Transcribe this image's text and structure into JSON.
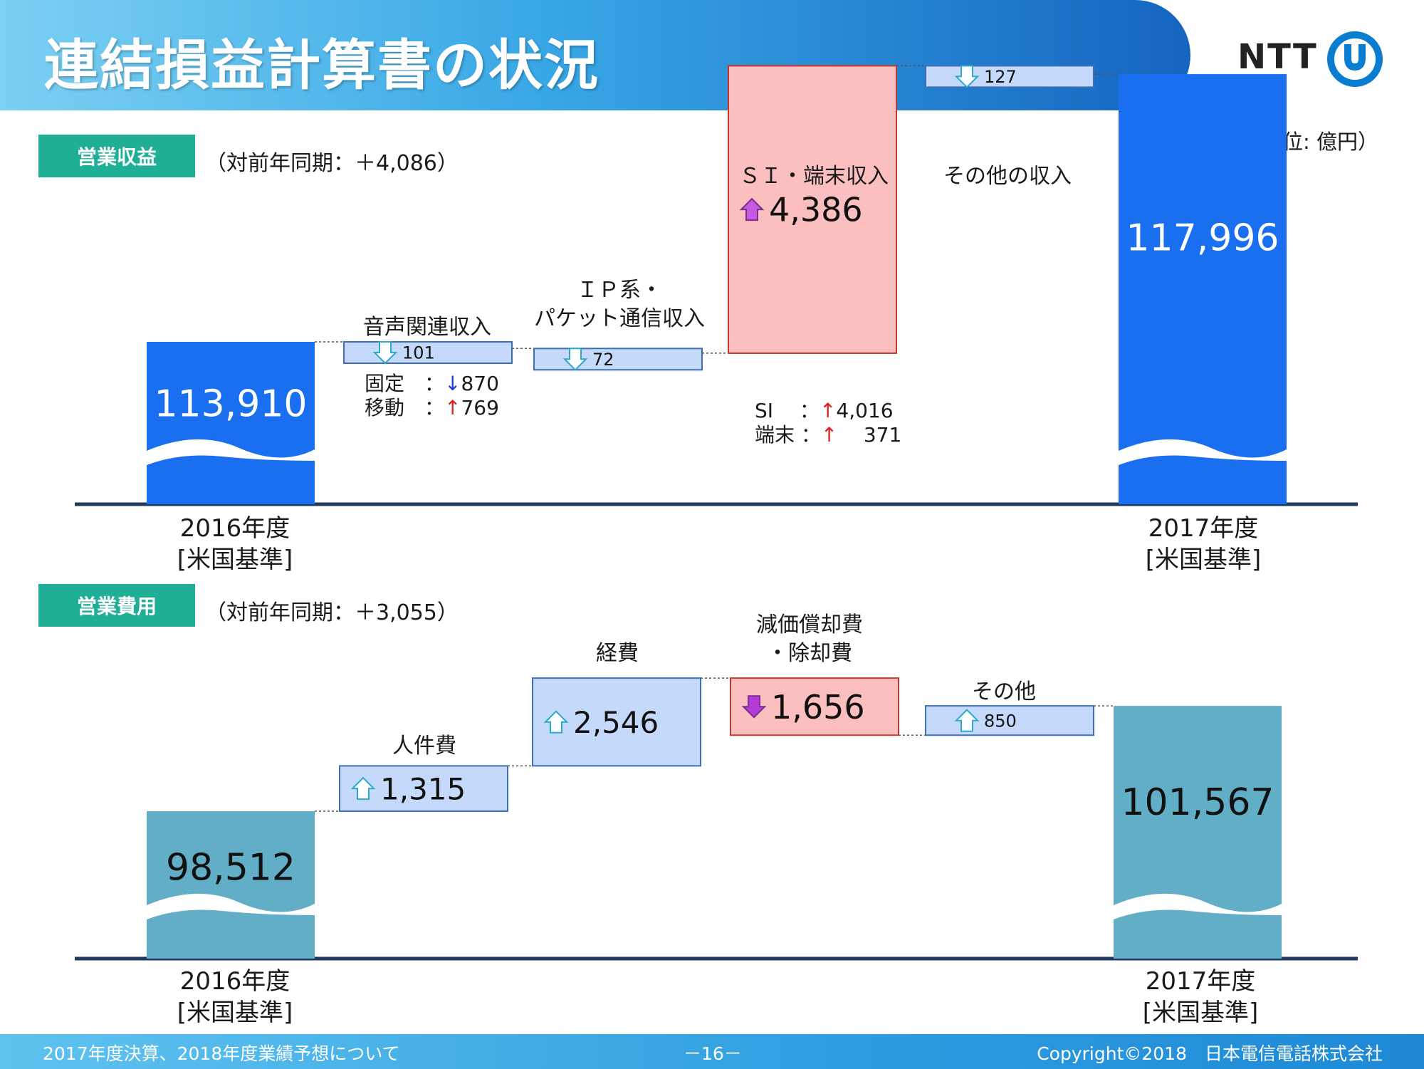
{
  "header": {
    "title": "連結損益計算書の状況",
    "logo": "NTT"
  },
  "unit": "（単位: 億円）",
  "chart_data": [
    {
      "type": "waterfall",
      "section_label": "営業収益",
      "yoy": "（対前年同期：＋4,086）",
      "start": {
        "value": 113910,
        "display": "113,910",
        "label": [
          "2016年度",
          "[米国基準]"
        ]
      },
      "steps": [
        {
          "label": [
            "音声関連収入"
          ],
          "change": -101,
          "display": "101",
          "direction": "down",
          "details": [
            {
              "name": "固定　：",
              "arrow": "↓",
              "value": "870"
            },
            {
              "name": "移動　：",
              "arrow": "↑",
              "value": "769"
            }
          ]
        },
        {
          "label": [
            "ＩＰ系・",
            "パケット通信収入"
          ],
          "change": -72,
          "display": "72",
          "direction": "down"
        },
        {
          "label": [
            "ＳＩ・端末収入"
          ],
          "change": 4386,
          "display": "4,386",
          "direction": "up",
          "details": [
            {
              "name": "SI　 ：",
              "arrow": "↑",
              "value": "4,016"
            },
            {
              "name": "端末 ：",
              "arrow": "↑",
              "value": "371"
            }
          ]
        },
        {
          "label": [
            "その他の収入"
          ],
          "change": -127,
          "display": "127",
          "direction": "down"
        }
      ],
      "end": {
        "value": 117996,
        "display": "117,996",
        "label": [
          "2017年度",
          "[米国基準]"
        ]
      }
    },
    {
      "type": "waterfall",
      "section_label": "営業費用",
      "yoy": "（対前年同期：＋3,055）",
      "start": {
        "value": 98512,
        "display": "98,512",
        "label": [
          "2016年度",
          "[米国基準]"
        ]
      },
      "steps": [
        {
          "label": [
            "人件費"
          ],
          "change": 1315,
          "display": "1,315",
          "direction": "up"
        },
        {
          "label": [
            "経費"
          ],
          "change": 2546,
          "display": "2,546",
          "direction": "up"
        },
        {
          "label": [
            "減価償却費",
            "・除却費"
          ],
          "change": -1656,
          "display": "1,656",
          "direction": "down"
        },
        {
          "label": [
            "その他"
          ],
          "change": 850,
          "display": "850",
          "direction": "up"
        }
      ],
      "end": {
        "value": 101567,
        "display": "101,567",
        "label": [
          "2017年度",
          "[米国基準]"
        ]
      }
    }
  ],
  "footer": {
    "left": "2017年度決算、2018年度業績予想について",
    "page": "－16－",
    "right": "Copyright©2018　日本電信電話株式会社"
  },
  "colors": {
    "revenue_total": "#1a6ef0",
    "expense_total": "#62aec6",
    "step_box": "#c5dafb",
    "highlight_box": "#fbbfc0",
    "tag": "#1fae96",
    "axis": "#1f3a5f"
  }
}
